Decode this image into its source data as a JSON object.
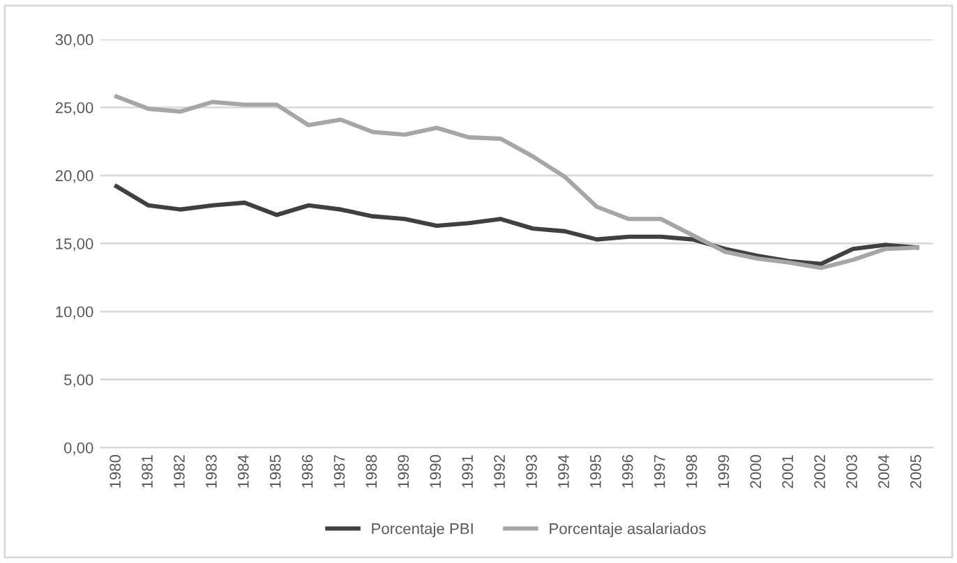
{
  "chart_data": {
    "type": "line",
    "categories": [
      "1980",
      "1981",
      "1982",
      "1983",
      "1984",
      "1985",
      "1986",
      "1987",
      "1988",
      "1989",
      "1990",
      "1991",
      "1992",
      "1993",
      "1994",
      "1995",
      "1996",
      "1997",
      "1998",
      "1999",
      "2000",
      "2001",
      "2002",
      "2003",
      "2004",
      "2005"
    ],
    "series": [
      {
        "name": "Porcentaje PBI",
        "color": "#404040",
        "values": [
          19.2,
          17.8,
          17.5,
          17.8,
          18.0,
          17.1,
          17.8,
          17.5,
          17.0,
          16.8,
          16.3,
          16.5,
          16.8,
          16.1,
          15.9,
          15.3,
          15.5,
          15.5,
          15.3,
          14.6,
          14.1,
          13.7,
          13.5,
          14.6,
          14.9,
          14.7
        ]
      },
      {
        "name": "Porcentaje asalariados",
        "color": "#a6a6a6",
        "values": [
          25.8,
          24.9,
          24.7,
          25.4,
          25.2,
          25.2,
          23.7,
          24.1,
          23.2,
          23.0,
          23.5,
          22.8,
          22.7,
          21.4,
          19.9,
          17.7,
          16.8,
          16.8,
          15.6,
          14.4,
          13.9,
          13.6,
          13.2,
          13.8,
          14.6,
          14.7
        ]
      }
    ],
    "ylim": [
      0,
      30
    ],
    "yticks": [
      {
        "value": 0,
        "label": "0,00"
      },
      {
        "value": 5,
        "label": "5,00"
      },
      {
        "value": 10,
        "label": "10,00"
      },
      {
        "value": 15,
        "label": "15,00"
      },
      {
        "value": 20,
        "label": "20,00"
      },
      {
        "value": 25,
        "label": "25,00"
      },
      {
        "value": 30,
        "label": "30,00"
      }
    ],
    "grid": "y",
    "legend": "bottom",
    "marker": "none",
    "line_style": "solid"
  }
}
